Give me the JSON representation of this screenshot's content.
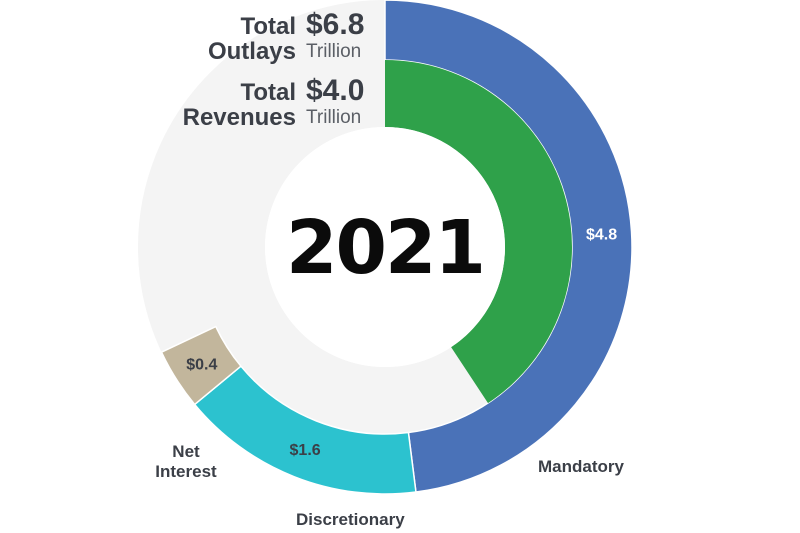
{
  "chart_data": {
    "type": "donut",
    "center_label": "2021",
    "header": {
      "outlays": {
        "label_line1": "Total",
        "label_line2": "Outlays",
        "amount": "$6.8",
        "unit": "Trillion"
      },
      "revenues": {
        "label_line1": "Total",
        "label_line2": "Revenues",
        "amount": "$4.0",
        "unit": "Trillion"
      }
    },
    "total_scale": 10,
    "outer_ring": {
      "name": "Outlays",
      "segments": [
        {
          "name": "Mandatory",
          "value": 4.8,
          "value_label": "$4.8",
          "color": "#4a72b8"
        },
        {
          "name": "Discretionary",
          "value": 1.6,
          "value_label": "$1.6",
          "color": "#2cc2cf"
        },
        {
          "name": "Net Interest",
          "value": 0.4,
          "value_label": "$0.4",
          "color": "#c2b69c"
        }
      ]
    },
    "inner_ring": {
      "name": "Revenues",
      "segments": [
        {
          "name": "Revenues",
          "value": 4.0,
          "color": "#2fa14a"
        }
      ]
    },
    "track_color": "#f4f4f4",
    "label_color": "#3b3f47"
  }
}
